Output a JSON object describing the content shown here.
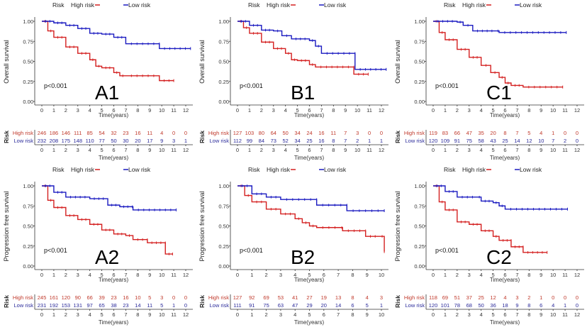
{
  "colors": {
    "high": "#d42020",
    "low": "#1a1ac0",
    "high_table": "#c0392b",
    "low_table": "#2a2a9a",
    "axis": "#333333"
  },
  "chart_data": [
    {
      "id": "A1",
      "type": "line",
      "label": "A1",
      "legend": {
        "title": "Risk",
        "entries": [
          "High risk",
          "Low risk"
        ],
        "position": "top"
      },
      "ylabel": "Overall survival",
      "xlabel": "Time(years)",
      "yticks": [
        "0.00",
        "0.25",
        "0.50",
        "0.75",
        "1.00"
      ],
      "ylim": [
        0,
        1
      ],
      "xticks": [
        0,
        1,
        2,
        3,
        4,
        5,
        6,
        7,
        8,
        9,
        10,
        11,
        12
      ],
      "xlim": [
        0,
        12
      ],
      "pvalue": "p<0.001",
      "series": [
        {
          "name": "High risk",
          "points": [
            [
              0,
              1
            ],
            [
              0.5,
              0.88
            ],
            [
              1,
              0.8
            ],
            [
              2,
              0.68
            ],
            [
              3,
              0.6
            ],
            [
              4,
              0.52
            ],
            [
              4.5,
              0.44
            ],
            [
              5,
              0.42
            ],
            [
              6,
              0.36
            ],
            [
              6.5,
              0.32
            ],
            [
              7,
              0.32
            ],
            [
              9.8,
              0.31
            ],
            [
              9.8,
              0.26
            ],
            [
              11,
              0.26
            ]
          ]
        },
        {
          "name": "Low risk",
          "points": [
            [
              0,
              1
            ],
            [
              1,
              0.98
            ],
            [
              2,
              0.95
            ],
            [
              3,
              0.91
            ],
            [
              4,
              0.85
            ],
            [
              5,
              0.84
            ],
            [
              6,
              0.8
            ],
            [
              7,
              0.72
            ],
            [
              9.8,
              0.72
            ],
            [
              9.8,
              0.66
            ],
            [
              12.4,
              0.66
            ]
          ]
        }
      ],
      "risk_table": {
        "title": "Risk",
        "rows": [
          {
            "name": "High risk",
            "values": [
              246,
              186,
              146,
              111,
              85,
              54,
              32,
              23,
              16,
              11,
              4,
              0,
              0
            ]
          },
          {
            "name": "Low risk",
            "values": [
              232,
              208,
              175,
              148,
              110,
              77,
              50,
              30,
              20,
              17,
              9,
              3,
              1
            ]
          }
        ]
      }
    },
    {
      "id": "B1",
      "type": "line",
      "label": "B1",
      "legend": {
        "title": "Risk",
        "entries": [
          "High risk",
          "Low risk"
        ],
        "position": "top"
      },
      "ylabel": "Overall survival",
      "xlabel": "Time(years)",
      "yticks": [
        "0.00",
        "0.25",
        "0.50",
        "0.75",
        "1.00"
      ],
      "ylim": [
        0,
        1
      ],
      "xticks": [
        0,
        1,
        2,
        3,
        4,
        5,
        6,
        7,
        8,
        9,
        10,
        11,
        12
      ],
      "xlim": [
        0,
        12
      ],
      "pvalue": "p<0.001",
      "series": [
        {
          "name": "High risk",
          "points": [
            [
              0,
              1
            ],
            [
              0.5,
              0.92
            ],
            [
              1,
              0.85
            ],
            [
              2,
              0.74
            ],
            [
              3,
              0.66
            ],
            [
              4,
              0.6
            ],
            [
              4.5,
              0.52
            ],
            [
              5,
              0.51
            ],
            [
              6,
              0.46
            ],
            [
              6.5,
              0.43
            ],
            [
              9.7,
              0.43
            ],
            [
              9.7,
              0.34
            ],
            [
              10.9,
              0.34
            ]
          ]
        },
        {
          "name": "Low risk",
          "points": [
            [
              0,
              1
            ],
            [
              1,
              0.95
            ],
            [
              2,
              0.89
            ],
            [
              3,
              0.88
            ],
            [
              3.7,
              0.82
            ],
            [
              4.5,
              0.78
            ],
            [
              6,
              0.76
            ],
            [
              6.5,
              0.69
            ],
            [
              7,
              0.6
            ],
            [
              9.8,
              0.6
            ],
            [
              9.8,
              0.4
            ],
            [
              12.4,
              0.4
            ]
          ]
        }
      ],
      "risk_table": {
        "title": "Risk",
        "rows": [
          {
            "name": "High risk",
            "values": [
              127,
              103,
              80,
              64,
              50,
              34,
              24,
              16,
              11,
              7,
              3,
              0,
              0
            ]
          },
          {
            "name": "Low risk",
            "values": [
              112,
              99,
              84,
              73,
              52,
              34,
              25,
              16,
              8,
              7,
              2,
              1,
              1
            ]
          }
        ]
      }
    },
    {
      "id": "C1",
      "type": "line",
      "label": "C1",
      "legend": {
        "title": "Risk",
        "entries": [
          "High risk",
          "Low risk"
        ],
        "position": "top"
      },
      "ylabel": "Overall survival",
      "xlabel": "Time(years)",
      "yticks": [
        "0.00",
        "0.25",
        "0.50",
        "0.75",
        "1.00"
      ],
      "ylim": [
        0,
        1
      ],
      "xticks": [
        0,
        1,
        2,
        3,
        4,
        5,
        6,
        7,
        8,
        9,
        10,
        11,
        12
      ],
      "xlim": [
        0,
        12
      ],
      "pvalue": "p<0.001",
      "series": [
        {
          "name": "High risk",
          "points": [
            [
              0,
              1
            ],
            [
              0.5,
              0.86
            ],
            [
              1,
              0.77
            ],
            [
              2,
              0.65
            ],
            [
              3,
              0.55
            ],
            [
              4,
              0.45
            ],
            [
              4.8,
              0.36
            ],
            [
              5.5,
              0.3
            ],
            [
              6,
              0.23
            ],
            [
              6.5,
              0.2
            ],
            [
              7.5,
              0.18
            ],
            [
              10.8,
              0.18
            ]
          ]
        },
        {
          "name": "Low risk",
          "points": [
            [
              0,
              1
            ],
            [
              2,
              0.99
            ],
            [
              2.5,
              0.95
            ],
            [
              3.3,
              0.88
            ],
            [
              5.3,
              0.88
            ],
            [
              5.5,
              0.86
            ],
            [
              11.1,
              0.86
            ]
          ]
        }
      ],
      "risk_table": {
        "title": "Risk",
        "rows": [
          {
            "name": "High risk",
            "values": [
              119,
              83,
              66,
              47,
              35,
              20,
              8,
              7,
              5,
              4,
              1,
              0,
              0
            ]
          },
          {
            "name": "Low risk",
            "values": [
              120,
              109,
              91,
              75,
              58,
              43,
              25,
              14,
              12,
              10,
              7,
              2,
              0
            ]
          }
        ]
      }
    },
    {
      "id": "A2",
      "type": "line",
      "label": "A2",
      "legend": {
        "title": "Risk",
        "entries": [
          "High risk",
          "Low risk"
        ],
        "position": "top"
      },
      "ylabel": "Progression free survival",
      "xlabel": "Time(years)",
      "yticks": [
        "0.00",
        "0.25",
        "0.50",
        "0.75",
        "1.00"
      ],
      "ylim": [
        0,
        1
      ],
      "xticks": [
        0,
        1,
        2,
        3,
        4,
        5,
        6,
        7,
        8,
        9,
        10,
        11,
        12
      ],
      "xlim": [
        0,
        12
      ],
      "pvalue": "p<0.001",
      "series": [
        {
          "name": "High risk",
          "points": [
            [
              0,
              1
            ],
            [
              0.5,
              0.82
            ],
            [
              1,
              0.73
            ],
            [
              2,
              0.63
            ],
            [
              3,
              0.58
            ],
            [
              4,
              0.52
            ],
            [
              5,
              0.45
            ],
            [
              6,
              0.4
            ],
            [
              7,
              0.38
            ],
            [
              7.6,
              0.33
            ],
            [
              8.8,
              0.33
            ],
            [
              8.8,
              0.29
            ],
            [
              10.3,
              0.29
            ],
            [
              10.3,
              0.15
            ],
            [
              10.9,
              0.15
            ]
          ]
        },
        {
          "name": "Low risk",
          "points": [
            [
              0,
              1
            ],
            [
              1,
              0.92
            ],
            [
              2,
              0.86
            ],
            [
              4,
              0.84
            ],
            [
              5.5,
              0.8
            ],
            [
              5.5,
              0.76
            ],
            [
              6.5,
              0.74
            ],
            [
              7.5,
              0.74
            ],
            [
              7.6,
              0.7
            ],
            [
              11.2,
              0.7
            ]
          ]
        }
      ],
      "risk_table": {
        "title": "Risk",
        "rows": [
          {
            "name": "High risk",
            "values": [
              245,
              161,
              120,
              90,
              66,
              39,
              23,
              16,
              10,
              5,
              3,
              0,
              0
            ]
          },
          {
            "name": "Low risk",
            "values": [
              231,
              192,
              153,
              131,
              97,
              65,
              38,
              23,
              14,
              11,
              5,
              1,
              0
            ]
          }
        ]
      }
    },
    {
      "id": "B2",
      "type": "line",
      "label": "B2",
      "legend": {
        "title": "Risk",
        "entries": [
          "High risk",
          "Low risk"
        ],
        "position": "top"
      },
      "ylabel": "Progression free survival",
      "xlabel": "Time(years)",
      "yticks": [
        "0.00",
        "0.25",
        "0.50",
        "0.75",
        "1.00"
      ],
      "ylim": [
        0,
        1
      ],
      "xticks": [
        0,
        1,
        2,
        3,
        4,
        5,
        6,
        7,
        8,
        9,
        10
      ],
      "xlim": [
        0,
        10
      ],
      "pvalue": "p<0.001",
      "series": [
        {
          "name": "High risk",
          "points": [
            [
              0,
              1
            ],
            [
              0.5,
              0.88
            ],
            [
              1,
              0.8
            ],
            [
              2,
              0.71
            ],
            [
              3,
              0.65
            ],
            [
              4,
              0.59
            ],
            [
              4.5,
              0.54
            ],
            [
              5,
              0.5
            ],
            [
              5.5,
              0.48
            ],
            [
              7.2,
              0.48
            ],
            [
              7.3,
              0.44
            ],
            [
              8.9,
              0.44
            ],
            [
              8.9,
              0.37
            ],
            [
              9.9,
              0.37
            ],
            [
              10.2,
              0.18
            ]
          ]
        },
        {
          "name": "Low risk",
          "points": [
            [
              0,
              1
            ],
            [
              1,
              0.9
            ],
            [
              2,
              0.86
            ],
            [
              3,
              0.83
            ],
            [
              5.5,
              0.83
            ],
            [
              5.5,
              0.76
            ],
            [
              7.6,
              0.76
            ],
            [
              7.6,
              0.69
            ],
            [
              10.2,
              0.69
            ]
          ]
        }
      ],
      "risk_table": {
        "title": "Risk",
        "rows": [
          {
            "name": "High risk",
            "values": [
              127,
              92,
              69,
              53,
              41,
              27,
              19,
              13,
              8,
              4,
              3
            ]
          },
          {
            "name": "Low risk",
            "values": [
              111,
              91,
              75,
              63,
              47,
              29,
              20,
              14,
              6,
              5,
              1
            ]
          }
        ]
      }
    },
    {
      "id": "C2",
      "type": "line",
      "label": "C2",
      "legend": {
        "title": "Risk",
        "entries": [
          "High risk",
          "Low risk"
        ],
        "position": "top"
      },
      "ylabel": "Progression free survival",
      "xlabel": "Time(years)",
      "yticks": [
        "0.00",
        "0.25",
        "0.50",
        "0.75",
        "1.00"
      ],
      "ylim": [
        0,
        1
      ],
      "xticks": [
        0,
        1,
        2,
        3,
        4,
        5,
        6,
        7,
        8,
        9,
        10,
        11,
        12
      ],
      "xlim": [
        0,
        12
      ],
      "pvalue": "p<0.001",
      "series": [
        {
          "name": "High risk",
          "points": [
            [
              0,
              1
            ],
            [
              0.5,
              0.8
            ],
            [
              1,
              0.7
            ],
            [
              2,
              0.55
            ],
            [
              3,
              0.52
            ],
            [
              4,
              0.44
            ],
            [
              5,
              0.37
            ],
            [
              5.5,
              0.32
            ],
            [
              6.5,
              0.32
            ],
            [
              6.5,
              0.24
            ],
            [
              7.5,
              0.24
            ],
            [
              7.5,
              0.17
            ],
            [
              9.5,
              0.17
            ]
          ]
        },
        {
          "name": "Low risk",
          "points": [
            [
              0,
              1
            ],
            [
              1,
              0.93
            ],
            [
              2,
              0.86
            ],
            [
              3.7,
              0.86
            ],
            [
              4,
              0.81
            ],
            [
              5,
              0.79
            ],
            [
              5.5,
              0.75
            ],
            [
              6,
              0.71
            ],
            [
              11.2,
              0.71
            ]
          ]
        }
      ],
      "risk_table": {
        "title": "Risk",
        "rows": [
          {
            "name": "High risk",
            "values": [
              118,
              69,
              51,
              37,
              25,
              12,
              4,
              3,
              2,
              1,
              0,
              0,
              0
            ]
          },
          {
            "name": "Low risk",
            "values": [
              120,
              101,
              78,
              68,
              50,
              36,
              18,
              9,
              8,
              6,
              4,
              1,
              0
            ]
          }
        ]
      }
    }
  ]
}
